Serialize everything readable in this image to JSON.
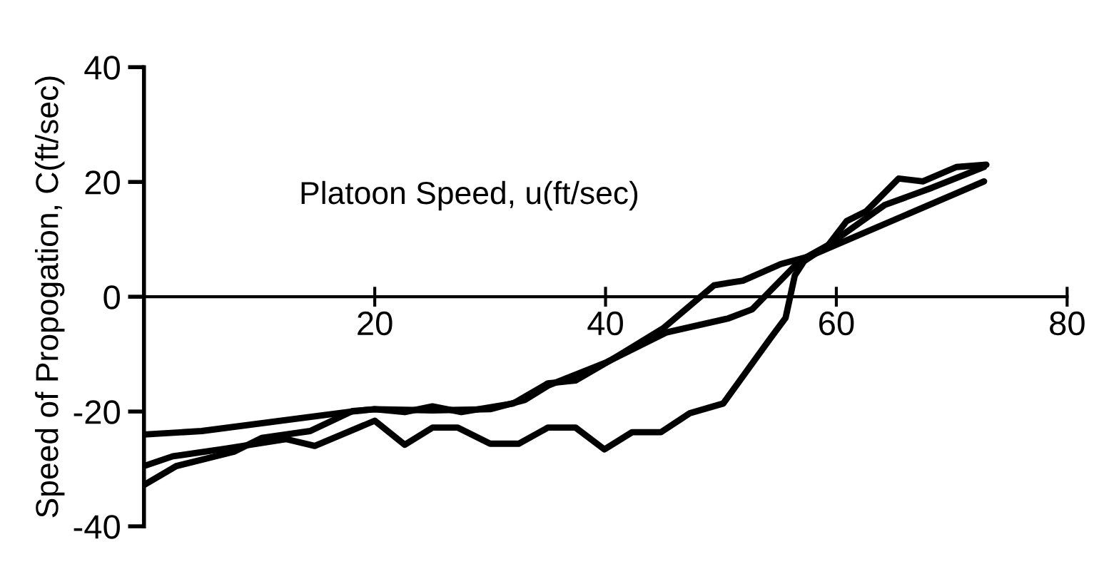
{
  "chart_data": {
    "type": "line",
    "xlabel": "Platoon Speed, u(ft/sec)",
    "ylabel": "Speed of Propogation, C(ft/sec)",
    "xlim": [
      0,
      80
    ],
    "ylim": [
      -40,
      40
    ],
    "xticks": [
      20,
      40,
      60,
      80
    ],
    "yticks": [
      -40,
      -20,
      0,
      20,
      40
    ],
    "grid": false,
    "legend": false,
    "marker": "none",
    "line_style": "solid",
    "series": [
      {
        "color": "#000000",
        "x": [
          0,
          5,
          18,
          20,
          22.6,
          25,
          27.5,
          32,
          35,
          37.4,
          41,
          45,
          49.4,
          51.9,
          55.2,
          57.6,
          72.8
        ],
        "values": [
          -24,
          -23.4,
          -20,
          -19.6,
          -20.1,
          -19.1,
          -20.1,
          -18.6,
          -15.1,
          -14.6,
          -10.4,
          -5.5,
          2,
          2.8,
          5.7,
          7,
          20.1
        ]
      },
      {
        "color": "#000000",
        "x": [
          0,
          2.5,
          7,
          12.3,
          14.8,
          20,
          22.6,
          25,
          27.2,
          30,
          32.5,
          35,
          37.4,
          39.9,
          42.3,
          44.8,
          47.3,
          50.2,
          54.3,
          55.6,
          56.4,
          57.2,
          59.3,
          60.9,
          62.6,
          65.4,
          67.5,
          70.4,
          73
        ],
        "values": [
          -29.5,
          -27.8,
          -26.5,
          -24.8,
          -26,
          -21.6,
          -25.8,
          -22.8,
          -22.8,
          -25.6,
          -25.6,
          -22.8,
          -22.8,
          -26.6,
          -23.6,
          -23.6,
          -20.3,
          -18.6,
          -7.2,
          -3.7,
          3.7,
          6.2,
          9,
          13.2,
          14.9,
          20.6,
          20.1,
          22.6,
          23
        ]
      },
      {
        "color": "#000000",
        "x": [
          0,
          2.8,
          7.8,
          10.2,
          14.4,
          18.1,
          20,
          25,
          30,
          33,
          35,
          40,
          45.3,
          50.6,
          52.7,
          56.8,
          59.3,
          64.2,
          68.3,
          72.8
        ],
        "values": [
          -32.8,
          -29.5,
          -27,
          -24.6,
          -23.4,
          -19.9,
          -19.6,
          -19.8,
          -19.6,
          -18,
          -15.5,
          -11.5,
          -6.2,
          -3.8,
          -2.2,
          6.2,
          9,
          16,
          19,
          22.6
        ]
      }
    ]
  }
}
